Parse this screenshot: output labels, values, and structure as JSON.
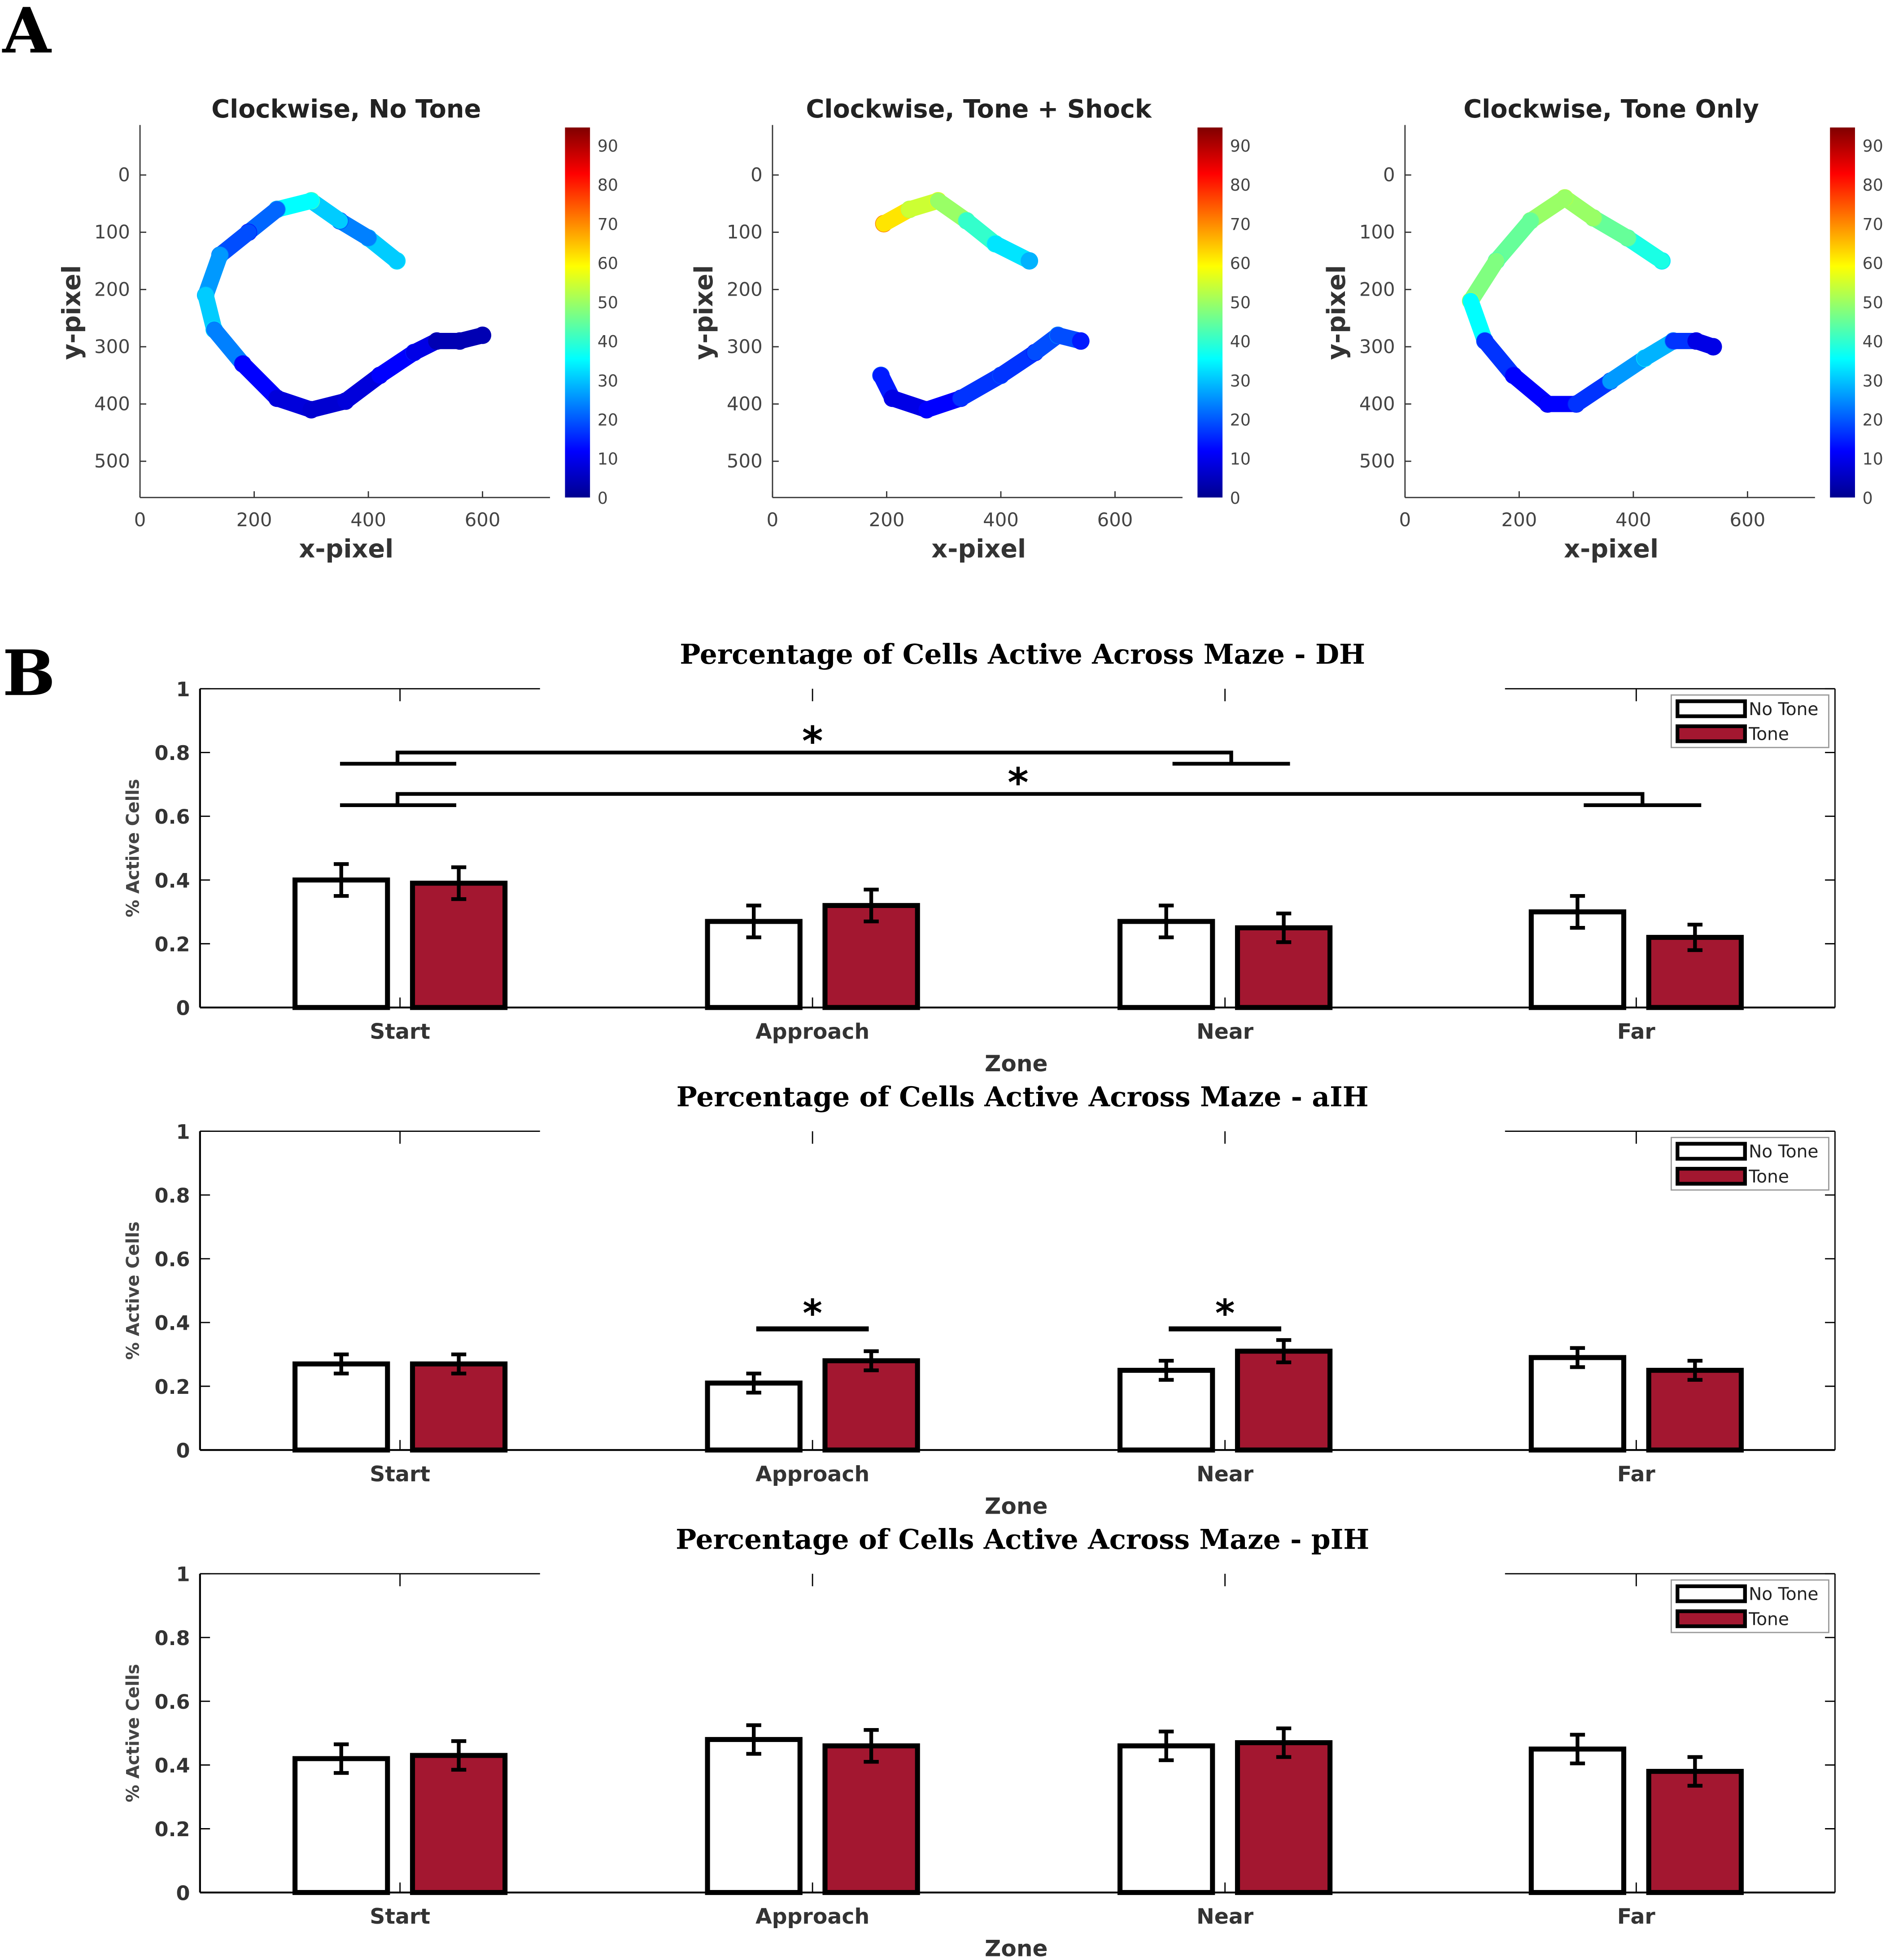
{
  "panel_labels": [
    "A",
    "B"
  ],
  "chart_data": [
    {
      "type": "heatmap",
      "title": "Clockwise, No Tone",
      "xlabel": "x-pixel",
      "ylabel": "y-pixel",
      "xticks": [
        0,
        200,
        400,
        600
      ],
      "yticks": [
        0,
        100,
        200,
        300,
        400,
        500
      ],
      "colorbar_ticks": [
        0,
        10,
        20,
        30,
        40,
        50,
        60,
        70,
        80,
        90
      ],
      "trajectory": [
        [
          450,
          150,
          35
        ],
        [
          400,
          110,
          30
        ],
        [
          350,
          80,
          20
        ],
        [
          300,
          45,
          45
        ],
        [
          240,
          60,
          30
        ],
        [
          190,
          100,
          15
        ],
        [
          140,
          140,
          25
        ],
        [
          115,
          210,
          30
        ],
        [
          130,
          270,
          35
        ],
        [
          180,
          330,
          15
        ],
        [
          240,
          390,
          10
        ],
        [
          300,
          410,
          8
        ],
        [
          360,
          395,
          8
        ],
        [
          420,
          350,
          10
        ],
        [
          480,
          310,
          15
        ],
        [
          520,
          290,
          5
        ],
        [
          560,
          290,
          5
        ],
        [
          600,
          280,
          5
        ]
      ]
    },
    {
      "type": "heatmap",
      "title": "Clockwise, Tone + Shock",
      "xlabel": "x-pixel",
      "ylabel": "y-pixel",
      "xticks": [
        0,
        200,
        400,
        600
      ],
      "yticks": [
        0,
        100,
        200,
        300,
        400,
        500
      ],
      "colorbar_ticks": [
        0,
        10,
        20,
        30,
        40,
        50,
        60,
        70,
        80,
        90
      ],
      "trajectory": [
        [
          195,
          85,
          75
        ],
        [
          240,
          60,
          55
        ],
        [
          290,
          45,
          60
        ],
        [
          340,
          80,
          45
        ],
        [
          390,
          120,
          40
        ],
        [
          450,
          150,
          30
        ],
        null,
        [
          190,
          350,
          20
        ],
        [
          210,
          390,
          10
        ],
        [
          270,
          410,
          10
        ],
        [
          330,
          390,
          15
        ],
        [
          400,
          350,
          20
        ],
        [
          460,
          310,
          15
        ],
        [
          500,
          280,
          25
        ],
        [
          540,
          290,
          15
        ]
      ]
    },
    {
      "type": "heatmap",
      "title": "Clockwise, Tone Only",
      "xlabel": "x-pixel",
      "ylabel": "y-pixel",
      "xticks": [
        0,
        200,
        400,
        600
      ],
      "yticks": [
        0,
        100,
        200,
        300,
        400,
        500
      ],
      "colorbar_ticks": [
        0,
        10,
        20,
        30,
        40,
        50,
        60,
        70,
        80,
        90
      ],
      "trajectory": [
        [
          450,
          150,
          35
        ],
        [
          390,
          110,
          45
        ],
        [
          330,
          75,
          50
        ],
        [
          280,
          40,
          55
        ],
        [
          220,
          80,
          50
        ],
        [
          160,
          150,
          45
        ],
        [
          115,
          220,
          55
        ],
        [
          140,
          290,
          20
        ],
        [
          190,
          350,
          15
        ],
        [
          250,
          400,
          10
        ],
        [
          300,
          400,
          15
        ],
        [
          360,
          360,
          20
        ],
        [
          420,
          320,
          35
        ],
        [
          470,
          290,
          25
        ],
        [
          510,
          290,
          10
        ],
        [
          540,
          300,
          10
        ]
      ]
    },
    {
      "type": "bar",
      "title": "Percentage of Cells Active Across Maze - DH",
      "xlabel": "Zone",
      "ylabel": "% Active Cells",
      "ylim": [
        0,
        1
      ],
      "yticks": [
        "0",
        "0.2",
        "0.4",
        "0.6",
        "0.8",
        "1"
      ],
      "categories": [
        "Start",
        "Approach",
        "Near",
        "Far"
      ],
      "series": [
        {
          "name": "No Tone",
          "values": [
            0.4,
            0.27,
            0.27,
            0.3
          ],
          "errors": [
            0.05,
            0.05,
            0.05,
            0.05
          ]
        },
        {
          "name": "Tone",
          "values": [
            0.39,
            0.32,
            0.25,
            0.22
          ],
          "errors": [
            0.05,
            0.05,
            0.045,
            0.04
          ]
        }
      ],
      "significance": [
        {
          "from": "Start",
          "to": "Near",
          "label": "*",
          "y": 0.8
        },
        {
          "from": "Start",
          "to": "Far",
          "label": "*",
          "y": 0.67
        }
      ]
    },
    {
      "type": "bar",
      "title": "Percentage of Cells Active Across Maze - aIH",
      "xlabel": "Zone",
      "ylabel": "% Active Cells",
      "ylim": [
        0,
        1
      ],
      "yticks": [
        "0",
        "0.2",
        "0.4",
        "0.6",
        "0.8",
        "1"
      ],
      "categories": [
        "Start",
        "Approach",
        "Near",
        "Far"
      ],
      "series": [
        {
          "name": "No Tone",
          "values": [
            0.27,
            0.21,
            0.25,
            0.29
          ],
          "errors": [
            0.03,
            0.03,
            0.03,
            0.03
          ]
        },
        {
          "name": "Tone",
          "values": [
            0.27,
            0.28,
            0.31,
            0.25
          ],
          "errors": [
            0.03,
            0.03,
            0.035,
            0.03
          ]
        }
      ],
      "significance": [
        {
          "within": "Approach",
          "label": "*",
          "y": 0.38
        },
        {
          "within": "Near",
          "label": "*",
          "y": 0.38
        }
      ]
    },
    {
      "type": "bar",
      "title": "Percentage of Cells Active Across Maze - pIH",
      "xlabel": "Zone",
      "ylabel": "% Active Cells",
      "ylim": [
        0,
        1
      ],
      "yticks": [
        "0",
        "0.2",
        "0.4",
        "0.6",
        "0.8",
        "1"
      ],
      "categories": [
        "Start",
        "Approach",
        "Near",
        "Far"
      ],
      "series": [
        {
          "name": "No Tone",
          "values": [
            0.42,
            0.48,
            0.46,
            0.45
          ],
          "errors": [
            0.045,
            0.045,
            0.045,
            0.045
          ]
        },
        {
          "name": "Tone",
          "values": [
            0.43,
            0.46,
            0.47,
            0.38
          ],
          "errors": [
            0.045,
            0.05,
            0.045,
            0.045
          ]
        }
      ],
      "significance": []
    }
  ],
  "colors": {
    "no_tone": "#ffffff",
    "tone": "#a31730",
    "axis": "#000000"
  }
}
